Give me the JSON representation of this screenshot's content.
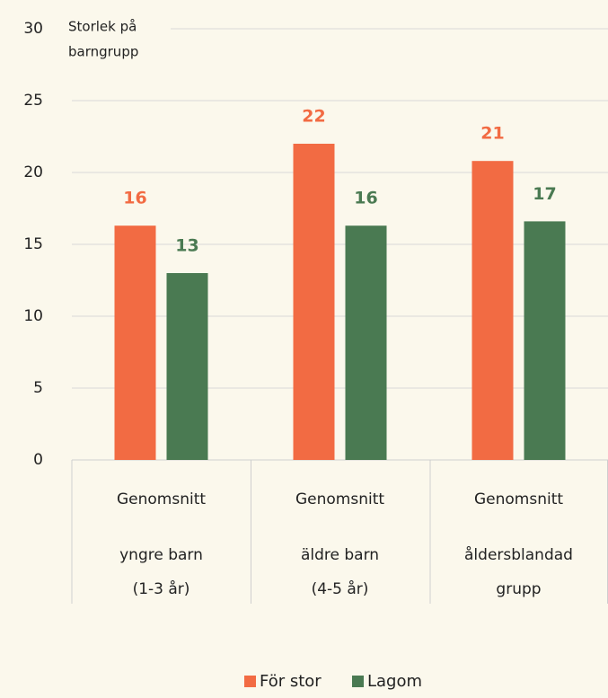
{
  "chart_data": {
    "type": "bar",
    "y_label": [
      "Storlek på",
      "barngrupp"
    ],
    "categories": [
      [
        "Genomsnitt",
        "yngre barn",
        "(1-3 år)"
      ],
      [
        "Genomsnitt",
        "äldre barn",
        "(4-5 år)"
      ],
      [
        "Genomsnitt",
        "åldersblandad",
        "grupp"
      ]
    ],
    "series": [
      {
        "name": "För stor",
        "color": "#f26b43",
        "values": [
          16.3,
          22,
          20.8
        ],
        "value_labels": [
          "16",
          "22",
          "21"
        ]
      },
      {
        "name": "Lagom",
        "color": "#4a7a52",
        "values": [
          13,
          16.3,
          16.6
        ],
        "value_labels": [
          "13",
          "16",
          "17"
        ]
      }
    ],
    "ylim": [
      0,
      30
    ],
    "yticks": [
      0,
      5,
      10,
      15,
      20,
      25,
      30
    ],
    "grid": true,
    "legend": "bottom"
  }
}
